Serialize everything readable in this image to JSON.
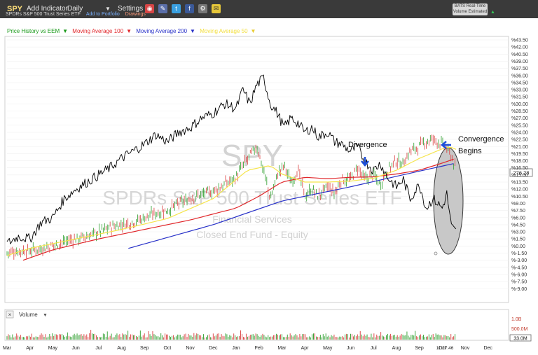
{
  "toolbar": {
    "symbol": "SPY",
    "add_indicator": "Add Indicator",
    "interval": "Daily",
    "settings": "Settings",
    "subtitle": "SPDRs S&P 500 Trust Series ETF",
    "add_to_portfolio": "Add to Portfolio",
    "drawings": "Drawings",
    "bats_line1": "BATS Real-Time",
    "bats_line2": "Volume Estimated"
  },
  "legend": {
    "price_history": "Price History vs EEM",
    "ma100": "Moving Average 100",
    "ma200": "Moving Average 200",
    "ma50": "Moving Average 50"
  },
  "colors": {
    "price": "#000000",
    "ma100": "#e0262a",
    "ma200": "#2730c8",
    "ma50": "#f5e44a",
    "up": "#2a9d2a",
    "down": "#d93b3b",
    "ellipse_fill": "#c8c8c8",
    "arrow": "#1f4fd9",
    "legend_text": "#1a9a1a",
    "toolbar_bg": "#3a3a3a"
  },
  "watermark": {
    "symbol": "SPY",
    "name": "SPDRs S&P 500 Trust Series ETF",
    "sector": "Financial Services",
    "fund_type": "Closed End Fund - Equity"
  },
  "annotations": {
    "divergence": "Divergence",
    "convergence_1": "Convergence",
    "convergence_2": "Begins"
  },
  "price_badge": "276.28",
  "volume_panel": {
    "label": "Volume",
    "scale_1": "1.0B",
    "scale_2": "500.0M",
    "current": "33.0M"
  },
  "time_label": "11:27:46",
  "chart_data": {
    "type": "line",
    "ylabel": "",
    "ylim": [
      -9.0,
      43.5
    ],
    "ytick_labels": [
      "%43.50",
      "%42.00",
      "%40.50",
      "%39.00",
      "%37.50",
      "%36.00",
      "%34.50",
      "%33.00",
      "%31.50",
      "%30.00",
      "%28.50",
      "%27.00",
      "%25.50",
      "%24.00",
      "%22.50",
      "%21.00",
      "%19.50",
      "%18.00",
      "%16.50",
      "%15.00",
      "%13.50",
      "%12.00",
      "%10.50",
      "%9.00",
      "%7.50",
      "%6.00",
      "%4.50",
      "%3.00",
      "%1.50",
      "%0.00",
      "%-1.50",
      "%-3.00",
      "%-4.50",
      "%-6.00",
      "%-7.50",
      "%-9.00"
    ],
    "yticks": [
      43.5,
      42.0,
      40.5,
      39.0,
      37.5,
      36.0,
      34.5,
      33.0,
      31.5,
      30.0,
      28.5,
      27.0,
      25.5,
      24.0,
      22.5,
      21.0,
      19.5,
      18.0,
      16.5,
      15.0,
      13.5,
      12.0,
      10.5,
      9.0,
      7.5,
      6.0,
      4.5,
      3.0,
      1.5,
      0.0,
      -1.5,
      -3.0,
      -4.5,
      -6.0,
      -7.5,
      -9.0
    ],
    "xtick_labels": [
      "Mar",
      "Apr",
      "May",
      "Jun",
      "Jul",
      "Aug",
      "Sep",
      "Oct",
      "Nov",
      "Dec",
      "Jan",
      "Feb",
      "Mar",
      "Apr",
      "May",
      "Jun",
      "Jul",
      "Aug",
      "Sep",
      "Oct",
      "Nov",
      "Dec"
    ],
    "xticks": [
      0,
      1,
      2,
      3,
      4,
      5,
      6,
      7,
      8,
      9,
      10,
      11,
      12,
      13,
      14,
      15,
      16,
      17,
      18,
      19,
      20,
      21
    ],
    "xlim": [
      0,
      21.2
    ],
    "series": [
      {
        "name": "Moving Average 200",
        "x": [
          5.3,
          9,
          12,
          15,
          18,
          19.6
        ],
        "y": [
          -0.5,
          4.5,
          9.5,
          12.5,
          15.8,
          17.5
        ]
      },
      {
        "name": "Moving Average 100",
        "x": [
          0.7,
          2,
          4,
          6,
          8,
          10,
          11,
          12,
          13,
          14,
          15,
          16,
          17,
          18,
          19,
          19.6
        ],
        "y": [
          -3,
          -0.8,
          1.5,
          3.5,
          5.5,
          8,
          10.5,
          13.5,
          14.5,
          14.2,
          14.5,
          14.6,
          15.2,
          16,
          17.5,
          18.5
        ]
      },
      {
        "name": "Moving Average 50",
        "x": [
          0,
          1,
          3,
          5,
          7,
          9,
          10,
          10.5,
          11,
          11.5,
          12,
          13,
          14,
          15,
          16,
          17,
          18,
          19,
          19.3,
          19.6
        ],
        "y": [
          -2,
          -0.5,
          1.5,
          3.5,
          5.8,
          10,
          14,
          16,
          16.5,
          17,
          15.2,
          13.5,
          13.5,
          13.7,
          14.3,
          16,
          18.5,
          20.5,
          21,
          20.4
        ]
      },
      {
        "name": "Price History",
        "x": [
          0,
          0.5,
          1,
          1.5,
          2,
          2.5,
          3,
          3.5,
          4,
          4.5,
          5,
          5.5,
          6,
          6.5,
          7,
          7.5,
          8,
          8.5,
          9,
          9.5,
          10,
          10.3,
          10.6,
          10.9,
          11.2,
          11.5,
          11.8,
          12.1,
          12.4,
          12.7,
          13,
          13.3,
          13.6,
          14,
          14.3,
          14.6,
          15,
          15.3,
          15.6,
          16,
          16.3,
          16.6,
          17,
          17.3,
          17.6,
          18,
          18.3,
          18.6,
          19,
          19.2,
          19.4,
          19.6
        ],
        "y": [
          0.5,
          2,
          1.5,
          5,
          6,
          10,
          12,
          13.5,
          15,
          16.5,
          18.5,
          20,
          21.5,
          23.5,
          22,
          24,
          25,
          27,
          28,
          30,
          29,
          33,
          30,
          34,
          35.5,
          30,
          28,
          25,
          27,
          26,
          24,
          25,
          23,
          24,
          22,
          21.5,
          20,
          21,
          18,
          16,
          17.5,
          14.5,
          12.5,
          14,
          10,
          13,
          8,
          10,
          8,
          11,
          4,
          3
        ]
      },
      {
        "name": "SPY daily candles",
        "x": [
          0,
          0.5,
          1,
          1.5,
          2,
          2.5,
          3,
          3.5,
          4,
          4.5,
          5,
          5.5,
          6,
          6.5,
          7,
          7.5,
          8,
          8.5,
          9,
          9.5,
          10,
          10.3,
          10.6,
          10.9,
          11.2,
          11.5,
          11.8,
          12.1,
          12.4,
          12.7,
          13,
          13.3,
          13.6,
          14,
          14.3,
          14.6,
          15,
          15.3,
          15.6,
          16,
          16.3,
          16.6,
          17,
          17.3,
          17.6,
          18,
          18.3,
          18.6,
          19,
          19.2,
          19.4,
          19.6
        ],
        "y": [
          -1.5,
          -1,
          -1,
          -0.5,
          0,
          1,
          1.5,
          2,
          3,
          4,
          4.5,
          5,
          6,
          7,
          7.5,
          9,
          10,
          11,
          11.5,
          13,
          14.5,
          17,
          19,
          21,
          16,
          10,
          15,
          17,
          13.5,
          16,
          10.5,
          12,
          10.5,
          12.5,
          11,
          14,
          14,
          16.5,
          14,
          15,
          13,
          16,
          18,
          17.5,
          20,
          21,
          22,
          22.5,
          21.5,
          20.5,
          19,
          16
        ]
      }
    ]
  }
}
